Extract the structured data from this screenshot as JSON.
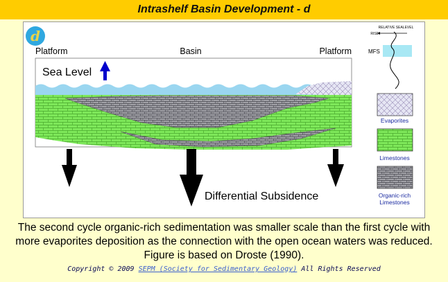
{
  "title": "Intrashelf Basin Development - d",
  "diagram": {
    "panel_letter": "d",
    "label_platform_left": "Platform",
    "label_basin": "Basin",
    "label_platform_right": "Platform",
    "sea_level_label": "Sea Level",
    "subsidence_label": "Differential Subsidence"
  },
  "sealevel_curve": {
    "title": "RELATIVE SEALEVEL",
    "rise_label": "RISE",
    "mfs_label": "MFS"
  },
  "legend": [
    {
      "label": "Evaporites"
    },
    {
      "label": "Limestones"
    },
    {
      "label": "Organic-rich Limestones"
    }
  ],
  "caption_lines": [
    "The second cycle organic-rich sedimentation was smaller scale than the first cycle with",
    "more evaporites deposition as the connection with the open ocean waters was reduced.",
    "Figure is based on Droste (1990)."
  ],
  "copyright": {
    "prefix": "Copyright © 2009 ",
    "link_text": "SEPM (Society for Sedimentary Geology)",
    "suffix": " All Rights Reserved"
  },
  "colors": {
    "title_bar": "#ffcc00",
    "background": "#ffffcc",
    "water": "#99d6f0",
    "limestone": "#7ee85a",
    "organic": "#9a9aa0",
    "evaporite": "#d8d8ee",
    "arrow_up": "#0000cc",
    "legend_text": "#1a2aa0"
  }
}
